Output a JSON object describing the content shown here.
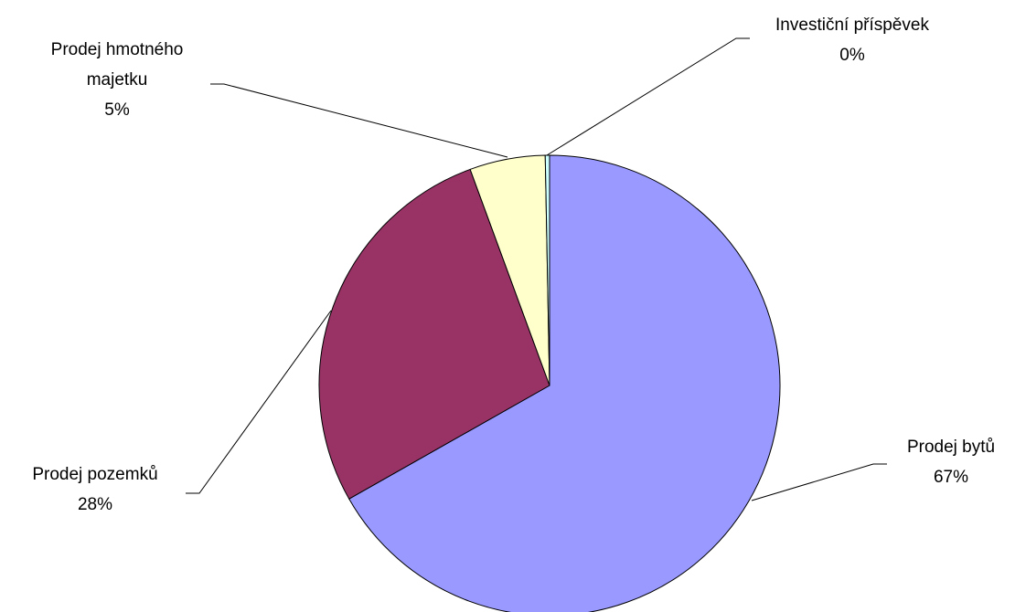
{
  "chart_data": {
    "type": "pie",
    "categories": [
      "Prodej bytů",
      "Prodej pozemků",
      "Prodej hmotného majetku",
      "Investiční příspěvek"
    ],
    "values": [
      66.8,
      27.6,
      5.3,
      0.3
    ],
    "value_labels": [
      "67%",
      "28%",
      "5%",
      "0%"
    ],
    "colors": [
      "#9999ff",
      "#993366",
      "#ffffcc",
      "#ccffff"
    ]
  }
}
